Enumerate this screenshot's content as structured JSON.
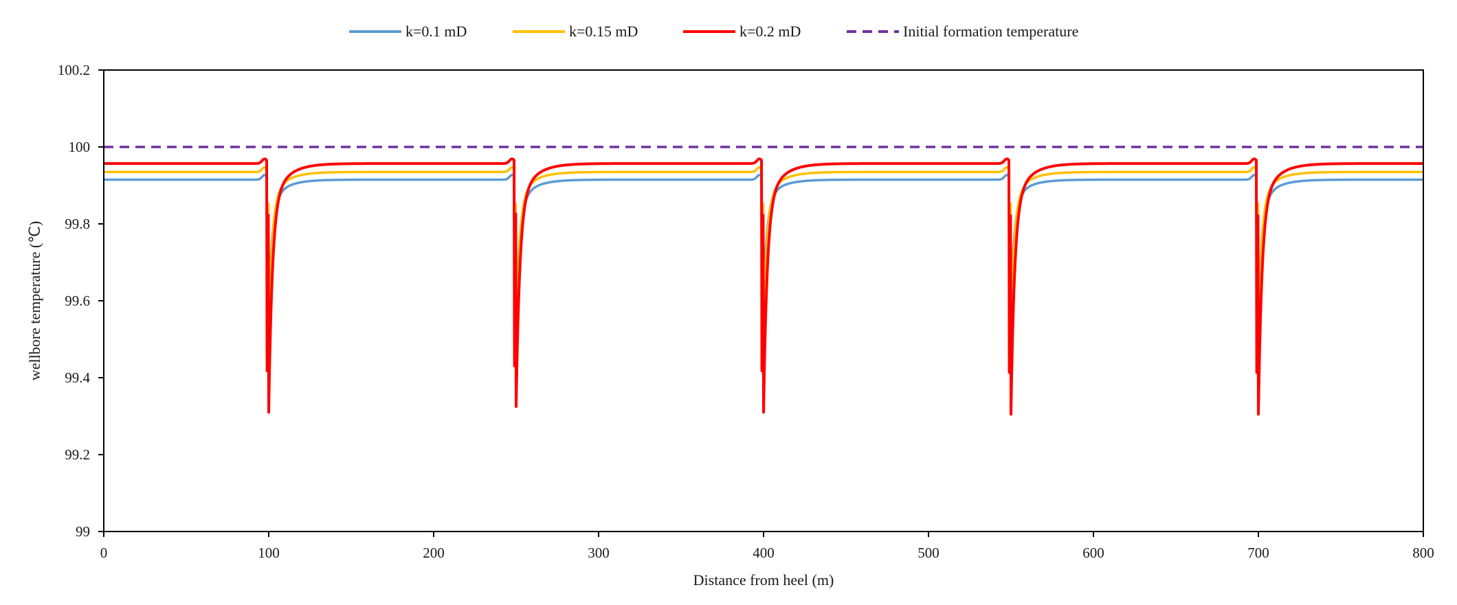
{
  "chart_data": {
    "type": "line",
    "title": "",
    "xlabel": "Distance from heel (m)",
    "ylabel": "wellbore temperature (℃)",
    "xlim": [
      0,
      800
    ],
    "ylim": [
      99,
      100.2
    ],
    "xticks": [
      0,
      100,
      200,
      300,
      400,
      500,
      600,
      700,
      800
    ],
    "yticks": [
      99,
      99.2,
      99.4,
      99.6,
      99.8,
      100,
      100.2
    ],
    "xtick_labels": [
      "0",
      "100",
      "200",
      "300",
      "400",
      "500",
      "600",
      "700",
      "800"
    ],
    "ytick_labels": [
      "99",
      "99.2",
      "99.4",
      "99.6",
      "99.8",
      "100",
      "100.2"
    ],
    "grid": false,
    "legend_position": "top",
    "fracture_positions": [
      100,
      250,
      400,
      550,
      700
    ],
    "series": [
      {
        "name": "k=0.1 mD",
        "color": "#5b9bd5",
        "dash": "solid",
        "baseline": 99.915,
        "minima": [
          99.58,
          99.55,
          99.61,
          99.6,
          99.55
        ]
      },
      {
        "name": "k=0.15 mD",
        "color": "#ffc000",
        "dash": "solid",
        "baseline": 99.935,
        "minima": [
          99.54,
          99.535,
          99.54,
          99.54,
          99.545
        ]
      },
      {
        "name": "k=0.2 mD",
        "color": "#ff0000",
        "dash": "solid",
        "baseline": 99.957,
        "minima": [
          99.31,
          99.325,
          99.31,
          99.305,
          99.305
        ]
      },
      {
        "name": "Initial formation temperature",
        "color": "#7030a0",
        "dash": "dashed",
        "baseline": 100.0,
        "minima": []
      }
    ]
  }
}
